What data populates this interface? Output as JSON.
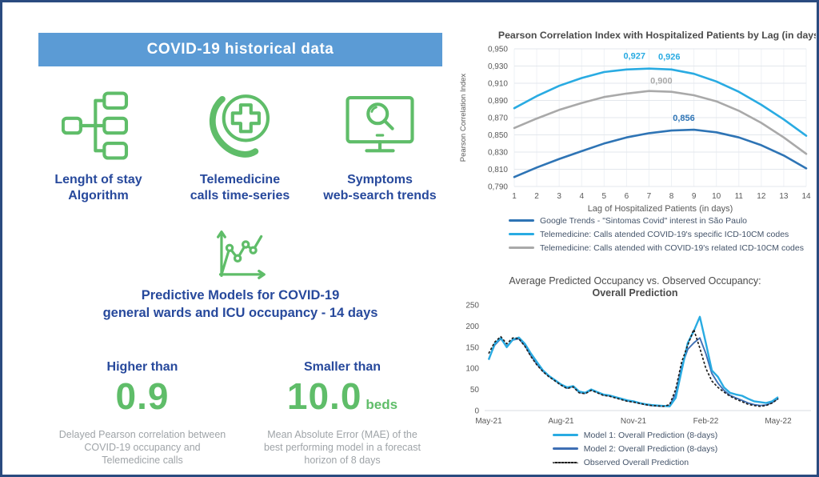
{
  "page": {
    "border_color": "#2a4b7f",
    "background": "#ffffff",
    "accent_blue": "#27499c",
    "accent_green": "#5fbd69",
    "header_bg": "#5b9bd5",
    "gray_text": "#9fa4a8"
  },
  "left": {
    "header": "COVID-19 historical data",
    "items": [
      {
        "icon": "hierarchy-icon",
        "line1": "Lenght of stay",
        "line2": "Algorithm"
      },
      {
        "icon": "telemedicine-phone-icon",
        "line1": "Telemedicine",
        "line2": "calls time-series"
      },
      {
        "icon": "monitor-search-icon",
        "line1": "Symptoms",
        "line2": "web-search trends"
      }
    ],
    "predictive": {
      "icon": "line-chart-icon",
      "line1": "Predictive Models for COVID-19",
      "line2": "general wards and ICU occupancy - 14 days"
    },
    "stats": [
      {
        "heading": "Higher than",
        "value": "0.9",
        "unit": "",
        "desc_line1": "Delayed Pearson correlation between",
        "desc_line2": "COVID-19 occupancy and",
        "desc_line3": "Telemedicine calls"
      },
      {
        "heading": "Smaller than",
        "value": "10.0",
        "unit": "beds",
        "desc_line1": "Mean Absolute Error (MAE) of the",
        "desc_line2": "best performing model in a forecast",
        "desc_line3": "horizon of 8 days"
      }
    ]
  },
  "chart_data": [
    {
      "type": "line",
      "title": "Pearson Correlation Index with Hospitalized Patients by Lag (in days)",
      "xlabel": "Lag of Hospitalized Patients (in days)",
      "ylabel": "Pearson Correlation Index",
      "x": [
        1,
        2,
        3,
        4,
        5,
        6,
        7,
        8,
        9,
        10,
        11,
        12,
        13,
        14
      ],
      "ylim": [
        0.79,
        0.95
      ],
      "yticks": [
        0.79,
        0.81,
        0.83,
        0.85,
        0.87,
        0.89,
        0.91,
        0.93,
        0.95
      ],
      "decimal_separator": ",",
      "grid": true,
      "legend_position": "bottom-left",
      "series": [
        {
          "name": "Google Trends - \"Sintomas Covid\" interest in São Paulo",
          "color": "#2e74b5",
          "z": 1,
          "values": [
            0.801,
            0.812,
            0.822,
            0.831,
            0.84,
            0.847,
            0.852,
            0.855,
            0.856,
            0.853,
            0.847,
            0.838,
            0.826,
            0.811
          ]
        },
        {
          "name": "Telemedicine: Calls atended COVID-19's specific ICD-10CM codes",
          "color": "#29abe2",
          "z": 3,
          "values": [
            0.881,
            0.895,
            0.907,
            0.916,
            0.923,
            0.926,
            0.927,
            0.926,
            0.921,
            0.912,
            0.9,
            0.885,
            0.868,
            0.849
          ]
        },
        {
          "name": "Telemedicine: Calls atended with COVID-19's related ICD-10CM codes",
          "color": "#a9a9a9",
          "z": 2,
          "values": [
            0.858,
            0.869,
            0.879,
            0.887,
            0.894,
            0.898,
            0.901,
            0.9,
            0.896,
            0.889,
            0.878,
            0.864,
            0.847,
            0.828
          ]
        }
      ],
      "annotations": [
        {
          "text": "0,927",
          "x": 6.35,
          "y": 0.9385,
          "color": "#29abe2"
        },
        {
          "text": "0,926",
          "x": 7.9,
          "y": 0.9375,
          "color": "#29abe2"
        },
        {
          "text": "0,900",
          "x": 7.55,
          "y": 0.9095,
          "color": "#a9a9a9"
        },
        {
          "text": "0,856",
          "x": 8.55,
          "y": 0.8665,
          "color": "#2e74b5"
        }
      ]
    },
    {
      "type": "line",
      "title": "Average Predicted Occupancy vs. Observed Occupancy: Overall Prediction",
      "title_line1": "Average Predicted Occupancy vs. Observed Occupancy:",
      "title_line2": "Overall Prediction",
      "ylim": [
        0,
        250
      ],
      "yticks": [
        0,
        50,
        100,
        150,
        200,
        250
      ],
      "xticks": [
        "May-21",
        "Aug-21",
        "Nov-21",
        "Feb-22",
        "May-22"
      ],
      "xtick_positions": [
        0,
        3,
        6,
        9,
        12
      ],
      "grid": false,
      "legend_position": "bottom-center",
      "x": [
        0,
        0.25,
        0.5,
        0.75,
        1,
        1.25,
        1.5,
        1.75,
        2,
        2.25,
        2.5,
        2.75,
        3,
        3.25,
        3.5,
        3.75,
        4,
        4.25,
        4.5,
        4.75,
        5,
        5.25,
        5.5,
        5.75,
        6,
        6.25,
        6.5,
        6.75,
        7,
        7.25,
        7.5,
        7.75,
        8,
        8.25,
        8.5,
        8.75,
        9,
        9.25,
        9.5,
        9.75,
        10,
        10.25,
        10.5,
        10.75,
        11,
        11.25,
        11.5,
        11.75,
        12
      ],
      "series": [
        {
          "name": "Model 1: Overall Prediction (8-days)",
          "color": "#29abe2",
          "style": "solid",
          "width": 2.4,
          "z": 2,
          "values": [
            120,
            158,
            172,
            150,
            168,
            173,
            158,
            135,
            115,
            95,
            82,
            72,
            62,
            55,
            58,
            45,
            42,
            50,
            44,
            38,
            36,
            32,
            28,
            24,
            22,
            18,
            15,
            13,
            12,
            11,
            10,
            30,
            95,
            160,
            188,
            222,
            160,
            95,
            80,
            55,
            42,
            38,
            35,
            28,
            22,
            20,
            18,
            22,
            32
          ]
        },
        {
          "name": "Model 2: Overall Prediction (8-days)",
          "color": "#3f6fb4",
          "style": "solid",
          "width": 1.9,
          "z": 1,
          "values": [
            122,
            155,
            170,
            152,
            167,
            170,
            154,
            130,
            110,
            93,
            81,
            71,
            61,
            53,
            57,
            43,
            41,
            49,
            43,
            37,
            35,
            31,
            27,
            23,
            21,
            17,
            14,
            12,
            11,
            10,
            12,
            40,
            105,
            145,
            160,
            172,
            135,
            88,
            65,
            48,
            36,
            30,
            24,
            18,
            14,
            12,
            13,
            19,
            29
          ]
        },
        {
          "name": "Observed Overall Prediction",
          "color": "#1f1f1f",
          "style": "dashed",
          "width": 1.7,
          "z": 3,
          "values": [
            135,
            162,
            175,
            158,
            172,
            170,
            152,
            128,
            108,
            92,
            80,
            70,
            60,
            52,
            56,
            42,
            40,
            48,
            42,
            36,
            34,
            30,
            26,
            22,
            20,
            17,
            14,
            12,
            11,
            10,
            14,
            50,
            115,
            155,
            192,
            148,
            100,
            70,
            55,
            44,
            34,
            27,
            21,
            15,
            12,
            10,
            12,
            18,
            28
          ]
        }
      ]
    }
  ]
}
